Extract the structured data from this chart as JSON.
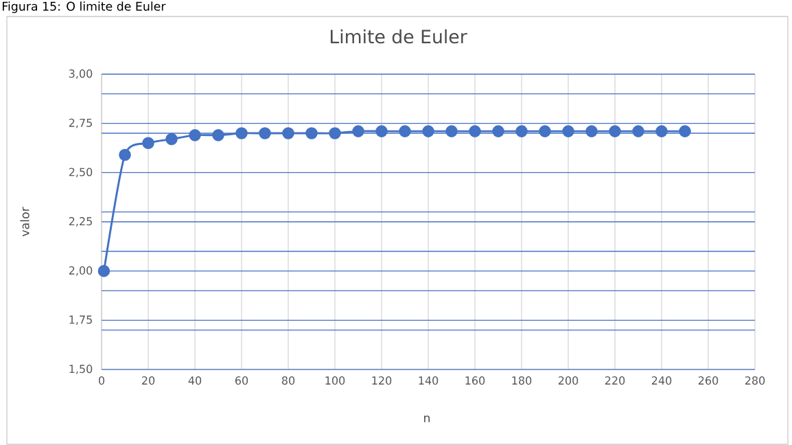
{
  "chart_data": {
    "type": "line",
    "title": "Limite de Euler",
    "xlabel": "n",
    "ylabel": "valor",
    "annotations": [
      "Figura 15: O limite de Euler"
    ],
    "x": [
      1,
      10,
      20,
      30,
      40,
      50,
      60,
      70,
      80,
      90,
      100,
      110,
      120,
      130,
      140,
      150,
      160,
      170,
      180,
      190,
      200,
      210,
      220,
      230,
      240,
      250
    ],
    "series": [
      {
        "color": "#4472c4",
        "values": [
          2.0,
          2.59,
          2.65,
          2.67,
          2.69,
          2.69,
          2.7,
          2.7,
          2.7,
          2.7,
          2.7,
          2.71,
          2.71,
          2.71,
          2.71,
          2.71,
          2.71,
          2.71,
          2.71,
          2.71,
          2.71,
          2.71,
          2.71,
          2.71,
          2.71,
          2.71
        ]
      }
    ],
    "xlim": [
      0,
      280
    ],
    "xticks": [
      0,
      20,
      40,
      60,
      80,
      100,
      120,
      140,
      160,
      180,
      200,
      220,
      240,
      260,
      280
    ],
    "ylim": [
      1.5,
      3.0
    ],
    "yticks": [
      {
        "value": 1.5,
        "label": "1,50"
      },
      {
        "value": 1.75,
        "label": "1,75"
      },
      {
        "value": 2.0,
        "label": "2,00"
      },
      {
        "value": 2.25,
        "label": "2,25"
      },
      {
        "value": 2.5,
        "label": "2,50"
      },
      {
        "value": 2.75,
        "label": "2,75"
      },
      {
        "value": 3.0,
        "label": "3,00"
      }
    ],
    "ref_lines": [
      {
        "axis": "y",
        "value": 1.7,
        "color": "#4472c4"
      },
      {
        "axis": "y",
        "value": 1.9,
        "color": "#4472c4"
      },
      {
        "axis": "y",
        "value": 2.1,
        "color": "#4472c4"
      },
      {
        "axis": "y",
        "value": 2.3,
        "color": "#4472c4"
      },
      {
        "axis": "y",
        "value": 2.7,
        "color": "#4472c4"
      },
      {
        "axis": "y",
        "value": 2.9,
        "color": "#4472c4"
      }
    ],
    "grid": true,
    "marker": "circle",
    "line_style": "solid"
  }
}
